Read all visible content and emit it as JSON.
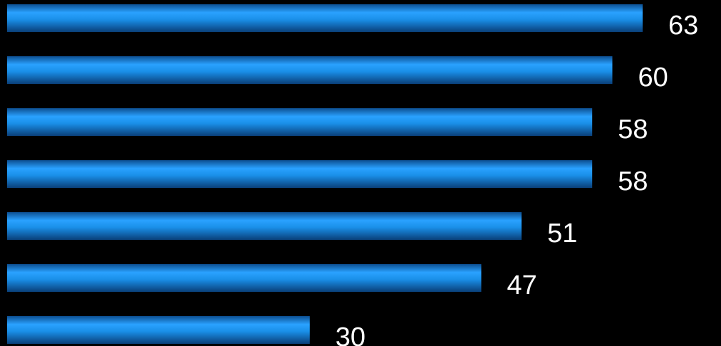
{
  "chart_data": {
    "type": "bar",
    "orientation": "horizontal",
    "values": [
      63,
      60,
      58,
      58,
      51,
      47,
      30
    ],
    "xlim": [
      0,
      63
    ],
    "grid": false,
    "legend": "none",
    "data_labels": "outside-end"
  },
  "colors": {
    "background": "#000000",
    "bar_light": "#3fb0ff",
    "bar_main": "#1a8fe8",
    "bar_dark": "#0a3f78",
    "label": "#ffffff"
  }
}
